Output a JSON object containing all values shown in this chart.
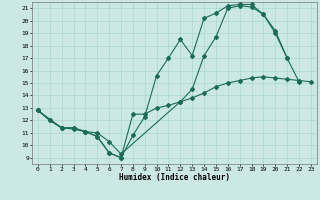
{
  "xlabel": "Humidex (Indice chaleur)",
  "bg_color": "#cce8e4",
  "line_color": "#1a6b5a",
  "grid_color": "#aad8d0",
  "xlim": [
    -0.5,
    23.5
  ],
  "ylim": [
    8.5,
    21.5
  ],
  "xticks": [
    0,
    1,
    2,
    3,
    4,
    5,
    6,
    7,
    8,
    9,
    10,
    11,
    12,
    13,
    14,
    15,
    16,
    17,
    18,
    19,
    20,
    21,
    22,
    23
  ],
  "yticks": [
    9,
    10,
    11,
    12,
    13,
    14,
    15,
    16,
    17,
    18,
    19,
    20,
    21
  ],
  "line1": {
    "x": [
      0,
      1,
      2,
      3,
      4,
      5,
      6,
      7,
      8,
      9,
      10,
      11,
      12,
      13,
      14,
      15,
      16,
      17,
      18,
      19,
      20,
      21,
      22,
      23
    ],
    "y": [
      12.8,
      12.0,
      11.4,
      11.4,
      11.1,
      10.7,
      9.4,
      9.0,
      12.5,
      12.5,
      13.0,
      13.2,
      13.5,
      13.8,
      14.2,
      14.7,
      15.0,
      15.2,
      15.4,
      15.5,
      15.4,
      15.3,
      15.2,
      15.1
    ]
  },
  "line2": {
    "x": [
      0,
      1,
      2,
      3,
      4,
      5,
      6,
      7,
      8,
      9,
      10,
      11,
      12,
      13,
      14,
      15,
      16,
      17,
      18,
      19,
      20,
      21,
      22
    ],
    "y": [
      12.8,
      12.0,
      11.4,
      11.4,
      11.1,
      10.7,
      9.4,
      9.0,
      10.8,
      12.3,
      15.6,
      17.0,
      18.5,
      17.2,
      20.2,
      20.6,
      21.2,
      21.3,
      21.3,
      20.5,
      19.2,
      17.0,
      15.1
    ]
  },
  "line3": {
    "x": [
      0,
      2,
      3,
      4,
      5,
      6,
      7,
      12,
      13,
      14,
      15,
      16,
      17,
      18,
      19,
      20,
      21
    ],
    "y": [
      12.8,
      11.4,
      11.3,
      11.1,
      11.0,
      10.3,
      9.3,
      13.5,
      14.5,
      17.2,
      18.7,
      21.0,
      21.2,
      21.1,
      20.5,
      19.0,
      17.0
    ]
  }
}
